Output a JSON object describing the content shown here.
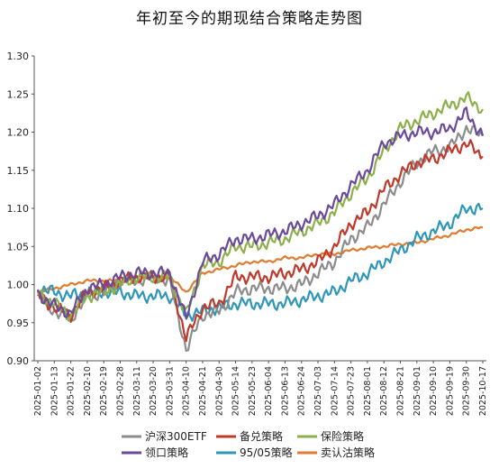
{
  "chart_data": {
    "type": "line",
    "title": "年初至今的期现结合策略走势图",
    "xlabel": "",
    "ylabel": "",
    "ylim": [
      0.9,
      1.3
    ],
    "yticks": [
      "0.90",
      "0.95",
      "1.00",
      "1.05",
      "1.10",
      "1.15",
      "1.20",
      "1.25",
      "1.30"
    ],
    "xticks": [
      "2025-01-02",
      "2025-01-13",
      "2025-01-22",
      "2025-02-10",
      "2025-02-19",
      "2025-02-28",
      "2025-03-11",
      "2025-03-20",
      "2025-03-31",
      "2025-04-10",
      "2025-04-21",
      "2025-04-30",
      "2025-05-14",
      "2025-05-23",
      "2025-06-04",
      "2025-06-13",
      "2025-06-24",
      "2025-07-03",
      "2025-07-14",
      "2025-07-23",
      "2025-08-01",
      "2025-08-12",
      "2025-08-21",
      "2025-09-01",
      "2025-09-10",
      "2025-09-19",
      "2025-09-30",
      "2025-10-17"
    ],
    "grid": false,
    "legend_position": "bottom",
    "series": [
      {
        "name": "沪深300ETF",
        "color": "#8c8c8c",
        "values": [
          0.985,
          0.965,
          0.955,
          0.985,
          0.99,
          1.005,
          1.005,
          1.01,
          1.005,
          0.915,
          0.96,
          0.965,
          0.99,
          0.995,
          0.995,
          0.995,
          1.0,
          1.015,
          1.03,
          1.06,
          1.075,
          1.105,
          1.135,
          1.16,
          1.175,
          1.18,
          1.205,
          1.195
        ]
      },
      {
        "name": "备兑策略",
        "color": "#c0392b",
        "values": [
          0.985,
          0.97,
          0.96,
          0.99,
          0.995,
          1.005,
          1.01,
          1.01,
          1.01,
          0.93,
          0.97,
          0.975,
          1.01,
          1.01,
          1.01,
          1.015,
          1.02,
          1.03,
          1.05,
          1.08,
          1.095,
          1.125,
          1.145,
          1.16,
          1.165,
          1.175,
          1.185,
          1.168
        ]
      },
      {
        "name": "保险策略",
        "color": "#8db04a",
        "values": [
          0.99,
          0.975,
          0.96,
          0.985,
          0.99,
          1.0,
          1.01,
          1.01,
          1.01,
          0.96,
          1.025,
          1.03,
          1.05,
          1.05,
          1.055,
          1.06,
          1.07,
          1.08,
          1.095,
          1.12,
          1.14,
          1.175,
          1.205,
          1.215,
          1.225,
          1.235,
          1.245,
          1.23
        ]
      },
      {
        "name": "领口策略",
        "color": "#6a4a9a",
        "values": [
          0.988,
          0.972,
          0.962,
          0.995,
          1.0,
          1.01,
          1.015,
          1.015,
          1.015,
          0.955,
          1.03,
          1.04,
          1.06,
          1.06,
          1.065,
          1.07,
          1.08,
          1.09,
          1.105,
          1.13,
          1.15,
          1.185,
          1.195,
          1.2,
          1.2,
          1.205,
          1.225,
          1.195
        ]
      },
      {
        "name": "95/05策略",
        "color": "#2e97b7",
        "values": [
          0.995,
          0.99,
          0.985,
          0.99,
          0.99,
          0.99,
          0.985,
          0.985,
          0.985,
          0.96,
          0.965,
          0.97,
          0.975,
          0.975,
          0.975,
          0.975,
          0.98,
          0.985,
          0.99,
          1.005,
          1.015,
          1.03,
          1.045,
          1.06,
          1.07,
          1.08,
          1.1,
          1.1
        ]
      },
      {
        "name": "卖认沽策略",
        "color": "#e07b30",
        "values": [
          0.99,
          0.995,
          1.0,
          1.005,
          1.005,
          1.005,
          1.01,
          1.01,
          1.01,
          0.99,
          1.015,
          1.02,
          1.025,
          1.03,
          1.03,
          1.035,
          1.035,
          1.04,
          1.04,
          1.045,
          1.048,
          1.05,
          1.053,
          1.055,
          1.06,
          1.065,
          1.072,
          1.075
        ]
      }
    ]
  }
}
